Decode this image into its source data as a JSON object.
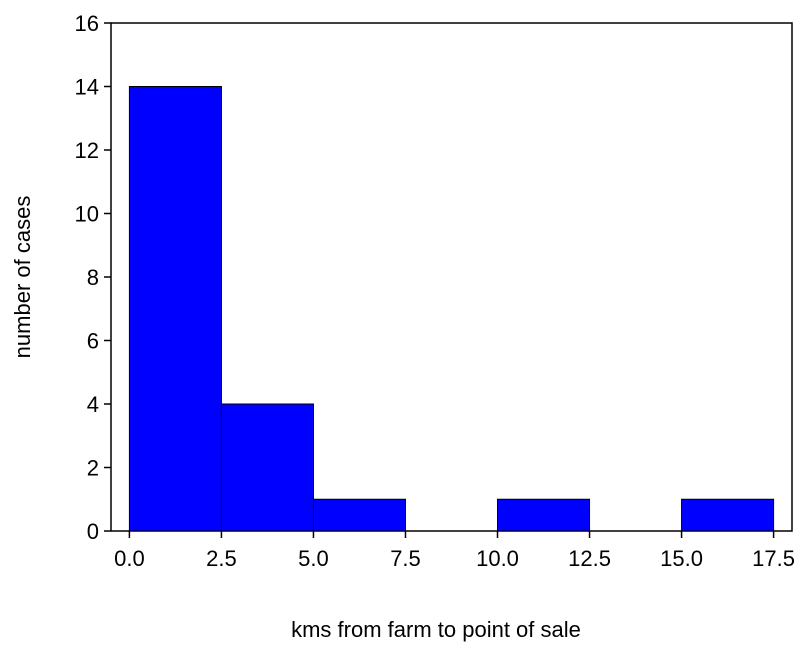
{
  "chart_data": {
    "type": "bar",
    "xlabel": "kms from farm to point of sale",
    "ylabel": "number of cases",
    "xlim": [
      -0.5,
      18.0
    ],
    "ylim": [
      0,
      16
    ],
    "grid": false,
    "legend": "none",
    "bins": [
      {
        "start": 0.0,
        "end": 2.5,
        "count": 14
      },
      {
        "start": 2.5,
        "end": 5.0,
        "count": 4
      },
      {
        "start": 5.0,
        "end": 7.5,
        "count": 1
      },
      {
        "start": 7.5,
        "end": 10.0,
        "count": 0
      },
      {
        "start": 10.0,
        "end": 12.5,
        "count": 1
      },
      {
        "start": 12.5,
        "end": 15.0,
        "count": 0
      },
      {
        "start": 15.0,
        "end": 17.5,
        "count": 1
      }
    ],
    "x_ticks": [
      {
        "value": 0.0,
        "label": "0.0"
      },
      {
        "value": 2.5,
        "label": "2.5"
      },
      {
        "value": 5.0,
        "label": "5.0"
      },
      {
        "value": 7.5,
        "label": "7.5"
      },
      {
        "value": 10.0,
        "label": "10.0"
      },
      {
        "value": 12.5,
        "label": "12.5"
      },
      {
        "value": 15.0,
        "label": "15.0"
      },
      {
        "value": 17.5,
        "label": "17.5"
      }
    ],
    "y_ticks": [
      {
        "value": 0,
        "label": "0"
      },
      {
        "value": 2,
        "label": "2"
      },
      {
        "value": 4,
        "label": "4"
      },
      {
        "value": 6,
        "label": "6"
      },
      {
        "value": 8,
        "label": "8"
      },
      {
        "value": 10,
        "label": "10"
      },
      {
        "value": 12,
        "label": "12"
      },
      {
        "value": 14,
        "label": "14"
      },
      {
        "value": 16,
        "label": "16"
      }
    ],
    "colors": {
      "bar_fill": "#0000FF",
      "bar_edge": "#000000",
      "axis": "#000000"
    }
  }
}
